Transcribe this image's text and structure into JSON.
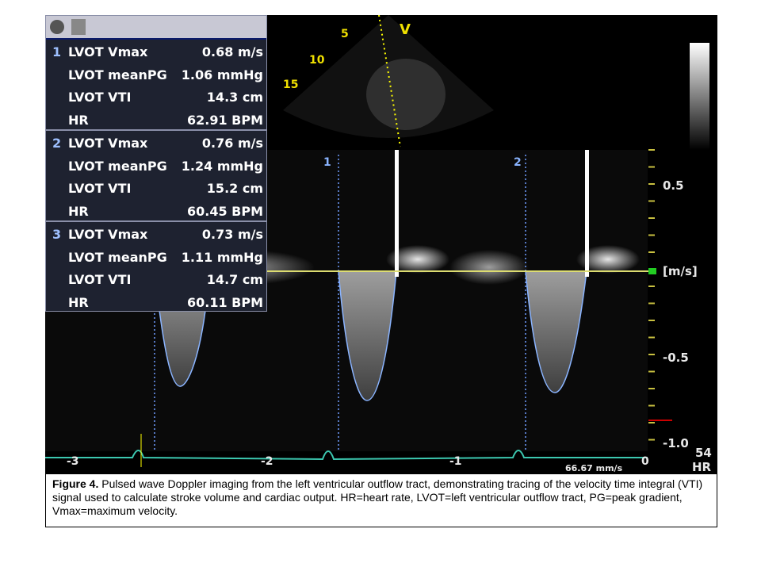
{
  "panel": {
    "groups": [
      {
        "index": "1",
        "rows": [
          {
            "label": "LVOT Vmax",
            "value": "0.68 m/s"
          },
          {
            "label": "LVOT meanPG",
            "value": "1.06 mmHg"
          },
          {
            "label": "LVOT VTI",
            "value": "14.3 cm"
          },
          {
            "label": "HR",
            "value": "62.91 BPM"
          }
        ]
      },
      {
        "index": "2",
        "rows": [
          {
            "label": "LVOT Vmax",
            "value": "0.76 m/s"
          },
          {
            "label": "LVOT meanPG",
            "value": "1.24 mmHg"
          },
          {
            "label": "LVOT VTI",
            "value": "15.2 cm"
          },
          {
            "label": "HR",
            "value": "60.45 BPM"
          }
        ]
      },
      {
        "index": "3",
        "rows": [
          {
            "label": "LVOT Vmax",
            "value": "0.73 m/s"
          },
          {
            "label": "LVOT meanPG",
            "value": "1.11 mmHg"
          },
          {
            "label": "LVOT VTI",
            "value": "14.7 cm"
          },
          {
            "label": "HR",
            "value": "60.11 BPM"
          }
        ]
      }
    ]
  },
  "sector": {
    "depth_labels": [
      "5",
      "10",
      "15"
    ],
    "mode": "V"
  },
  "markers": [
    "1",
    "2"
  ],
  "velocity_scale": [
    "0.5",
    "[m/s]",
    "-0.5",
    "-1.0"
  ],
  "heart_rate": {
    "value": "54",
    "label": "HR"
  },
  "time_scale": [
    "-3",
    "-2",
    "-1",
    "0"
  ],
  "sweep_speed": "66.67 mm/s",
  "caption": {
    "label": "Figure 4.",
    "text": " Pulsed wave Doppler imaging from the left ventricular outflow tract, demonstrating tracing of the velocity time integral (VTI) signal used to calculate stroke volume and cardiac output. HR=heart rate, LVOT=left ventricular outflow tract, PG=peak gradient, Vmax=maximum velocity."
  }
}
